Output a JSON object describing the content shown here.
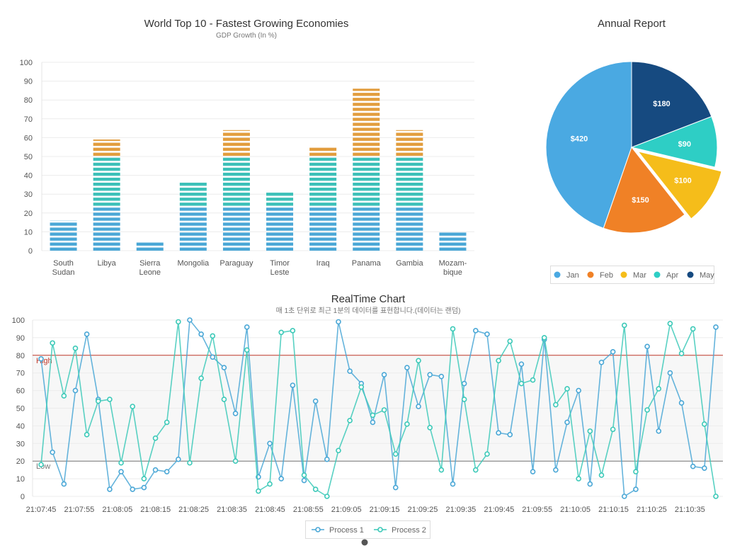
{
  "chart_data": [
    {
      "id": "gdp-bar",
      "type": "bar",
      "title": "World Top 10 - Fastest Growing Economies",
      "subtitle": "GDP Growth (In %)",
      "categories": [
        [
          "South",
          "Sudan"
        ],
        [
          "Libya"
        ],
        [
          "Sierra",
          "Leone"
        ],
        [
          "Mongolia"
        ],
        [
          "Paraguay"
        ],
        [
          "Timor",
          "Leste"
        ],
        [
          "Iraq"
        ],
        [
          "Panama"
        ],
        [
          "Gambia"
        ],
        [
          "Mozam-",
          "bique"
        ]
      ],
      "values": [
        16,
        59,
        5,
        37,
        64,
        31,
        55,
        86,
        64,
        10
      ],
      "ylim": [
        0,
        100
      ],
      "yticks": [
        0,
        10,
        20,
        30,
        40,
        50,
        60,
        70,
        80,
        90,
        100
      ],
      "color_thresholds": [
        {
          "upto": 23,
          "color": "#4aa7d6"
        },
        {
          "upto": 50,
          "color": "#3cc0b8"
        },
        {
          "upto": 100,
          "color": "#e29d3e"
        }
      ],
      "grid": true
    },
    {
      "id": "annual-pie",
      "type": "pie",
      "title": "Annual Report",
      "labels": [
        "Jan",
        "Feb",
        "Mar",
        "Apr",
        "May"
      ],
      "values": [
        420,
        150,
        100,
        90,
        180
      ],
      "value_labels": [
        "$420",
        "$150",
        "$100",
        "$90",
        "$180"
      ],
      "colors": [
        "#4aa9e2",
        "#f08126",
        "#f5bd1a",
        "#2ecec5",
        "#164a80"
      ],
      "exploded": "Mar",
      "legend_position": "bottom"
    },
    {
      "id": "realtime-line",
      "type": "line",
      "title": "RealTime Chart",
      "subtitle": "매 1초 단위로 최근 1분의 데이터를 표현합니다.(데이터는 랜덤)",
      "x_start": "21:07:45",
      "x_interval_seconds": 1,
      "x_tick_labels": [
        "21:07:45",
        "21:07:55",
        "21:08:05",
        "21:08:15",
        "21:08:25",
        "21:08:35",
        "21:08:45",
        "21:08:55",
        "21:09:05",
        "21:09:15",
        "21:09:25",
        "21:09:35",
        "21:09:45",
        "21:09:55",
        "21:10:05",
        "21:10:15",
        "21:10:25",
        "21:10:35"
      ],
      "ylim": [
        0,
        100
      ],
      "yticks": [
        0,
        10,
        20,
        30,
        40,
        50,
        60,
        70,
        80,
        90,
        100
      ],
      "plotbands": [
        {
          "from": 20,
          "to": 80,
          "color": "#f7f7f7"
        }
      ],
      "plotlines": [
        {
          "value": 80,
          "label": "High",
          "color": "#c0392b"
        },
        {
          "value": 20,
          "label": "Low",
          "color": "#777777"
        }
      ],
      "series": [
        {
          "name": "Process 1",
          "color": "#4aa7d6",
          "values": [
            78,
            25,
            7,
            60,
            92,
            55,
            4,
            14,
            4,
            5,
            15,
            14,
            21,
            100,
            92,
            79,
            73,
            47,
            96,
            11,
            30,
            10,
            63,
            9,
            54,
            21,
            99,
            71,
            64,
            42,
            69,
            5,
            73,
            51,
            69,
            68,
            7,
            64,
            94,
            92,
            36,
            35,
            75,
            14,
            89,
            15,
            42,
            60,
            7,
            76,
            82,
            0,
            4,
            85,
            37,
            70,
            53,
            17,
            16,
            96
          ]
        },
        {
          "name": "Process 2",
          "color": "#3cc9b8",
          "values": [
            18,
            87,
            57,
            84,
            35,
            54,
            55,
            19,
            51,
            10,
            33,
            42,
            99,
            19,
            67,
            91,
            55,
            20,
            83,
            3,
            7,
            93,
            94,
            12,
            4,
            0,
            26,
            43,
            62,
            46,
            49,
            24,
            41,
            77,
            39,
            15,
            95,
            55,
            15,
            24,
            77,
            88,
            64,
            66,
            90,
            52,
            61,
            10,
            37,
            12,
            38,
            97,
            14,
            49,
            61,
            98,
            81,
            95,
            41,
            0
          ]
        }
      ],
      "legend_position": "bottom"
    }
  ]
}
